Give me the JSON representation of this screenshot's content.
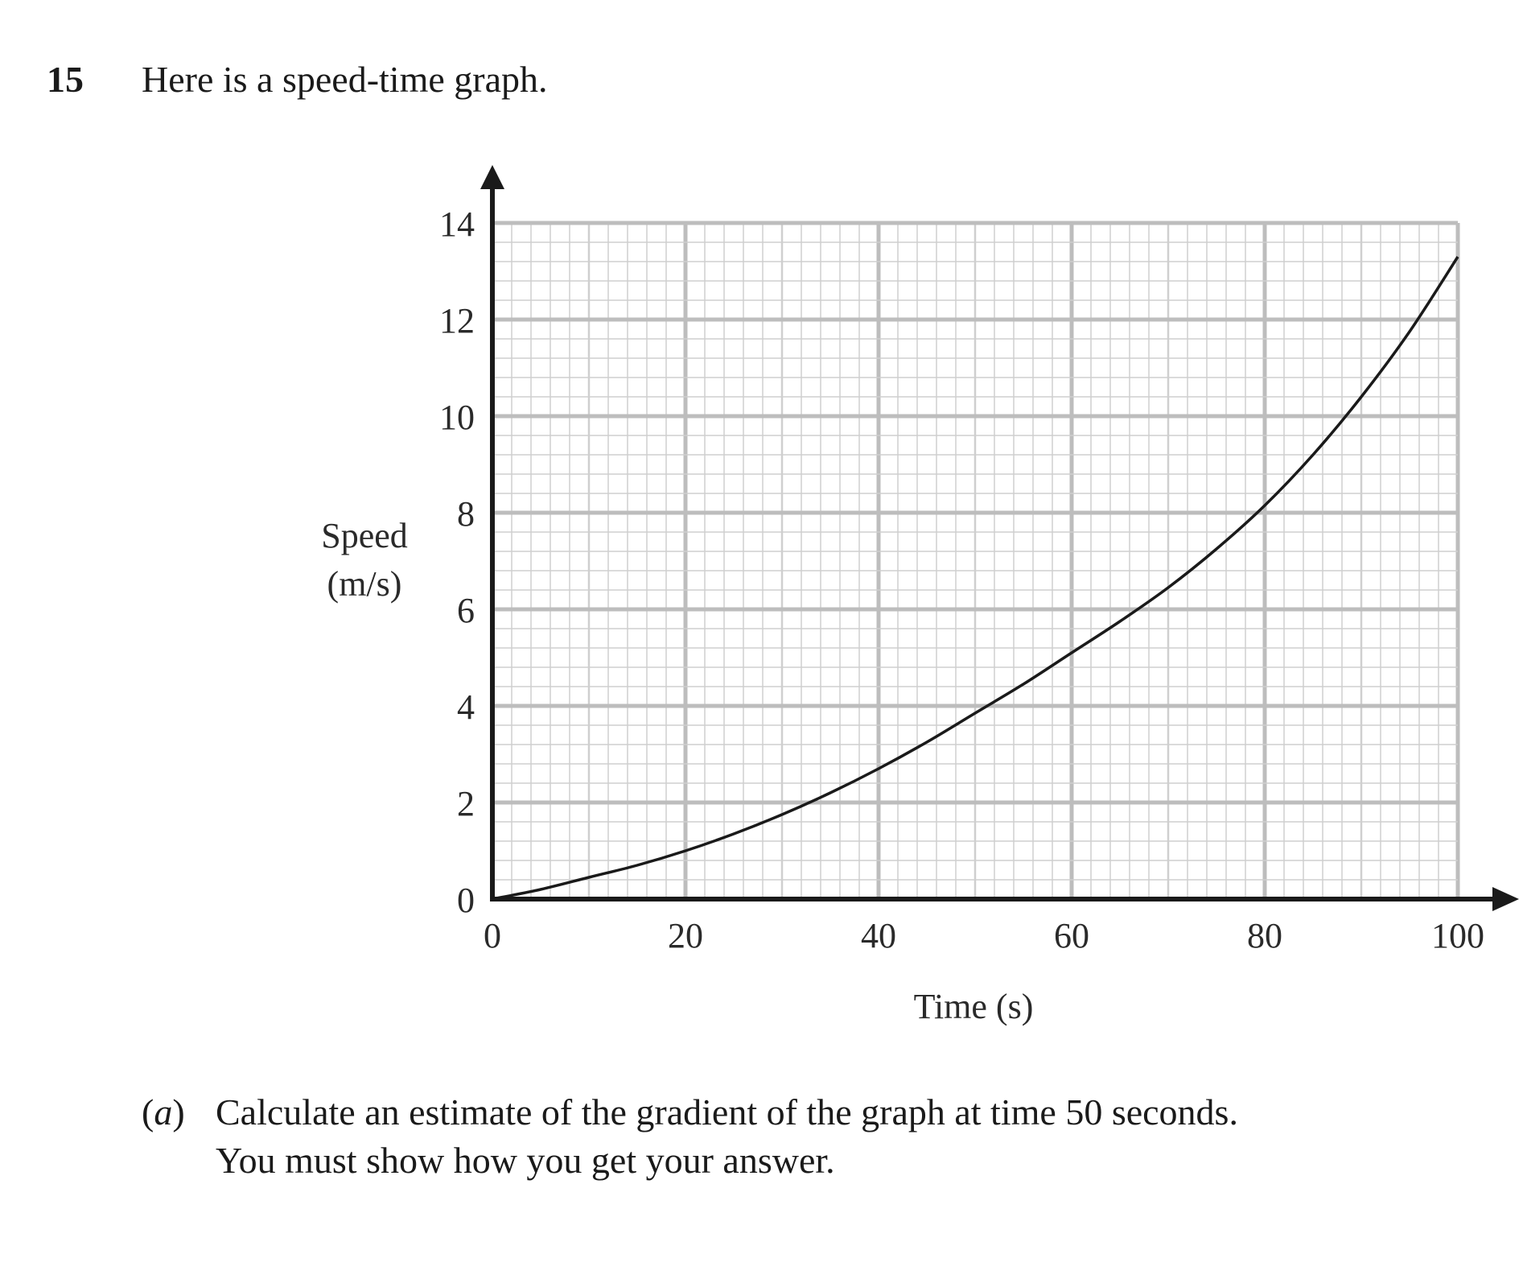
{
  "question": {
    "number": "15",
    "intro": "Here is a speed-time graph.",
    "part_a": {
      "letter": "a",
      "line1": "Calculate an estimate of the gradient of the graph at time 50 seconds.",
      "line2": "You must show how you get your answer."
    }
  },
  "chart_data": {
    "type": "line",
    "xlabel": "Time (s)",
    "ylabel_line1": "Speed",
    "ylabel_line2": "(m/s)",
    "xlim": [
      0,
      100
    ],
    "ylim": [
      0,
      14
    ],
    "x_ticks": [
      0,
      20,
      40,
      60,
      80,
      100
    ],
    "y_ticks": [
      0,
      2,
      4,
      6,
      8,
      10,
      12,
      14
    ],
    "grid": true,
    "series": [
      {
        "x": [
          0,
          5,
          10,
          15,
          20,
          25,
          30,
          35,
          40,
          45,
          50,
          55,
          60,
          65,
          70,
          75,
          80,
          85,
          90,
          95,
          100
        ],
        "y": [
          0,
          0.2,
          0.45,
          0.7,
          1.0,
          1.35,
          1.75,
          2.2,
          2.7,
          3.25,
          3.85,
          4.45,
          5.1,
          5.75,
          6.45,
          7.25,
          8.15,
          9.2,
          10.4,
          11.75,
          13.3
        ]
      }
    ]
  }
}
